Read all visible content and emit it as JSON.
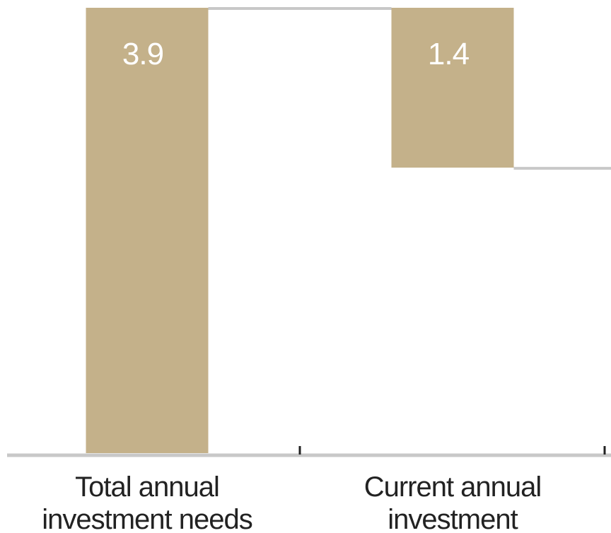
{
  "chart_data": {
    "type": "bar",
    "subtype": "waterfall",
    "categories": [
      [
        "Total annual",
        "investment needs"
      ],
      [
        "Current annual",
        "investment"
      ]
    ],
    "series": [
      {
        "values": [
          3.9,
          1.4
        ],
        "data_labels": [
          "3.9",
          "1.4"
        ],
        "ranges": [
          [
            0,
            3.9
          ],
          [
            2.5,
            3.9
          ]
        ]
      }
    ],
    "ylim": [
      0,
      3.9
    ],
    "grid": false,
    "legend": "none",
    "colors": {
      "bar": "#c4b18a",
      "connector": "#c8c8c8",
      "axis": "#c8c8c8",
      "tick": "#222222",
      "text": "#222222",
      "label": "#ffffff"
    }
  }
}
